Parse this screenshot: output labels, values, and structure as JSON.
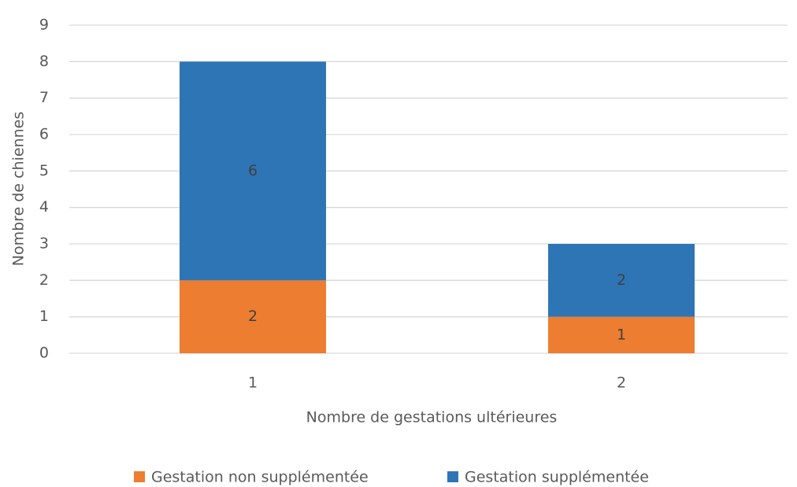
{
  "chart_data": {
    "type": "bar",
    "stacked": true,
    "categories": [
      "1",
      "2"
    ],
    "series": [
      {
        "name": "Gestation non supplémentée",
        "color": "#ed7d31",
        "values": [
          2,
          1
        ]
      },
      {
        "name": "Gestation supplémentée",
        "color": "#2e75b6",
        "values": [
          6,
          2
        ]
      }
    ],
    "xlabel": "Nombre de gestations ultérieures",
    "ylabel": "Nombre de chiennes",
    "ylim": [
      0,
      9
    ],
    "yticks": [
      0,
      1,
      2,
      3,
      4,
      5,
      6,
      7,
      8,
      9
    ],
    "grid": true,
    "data_labels": true,
    "legend": "bottom"
  }
}
